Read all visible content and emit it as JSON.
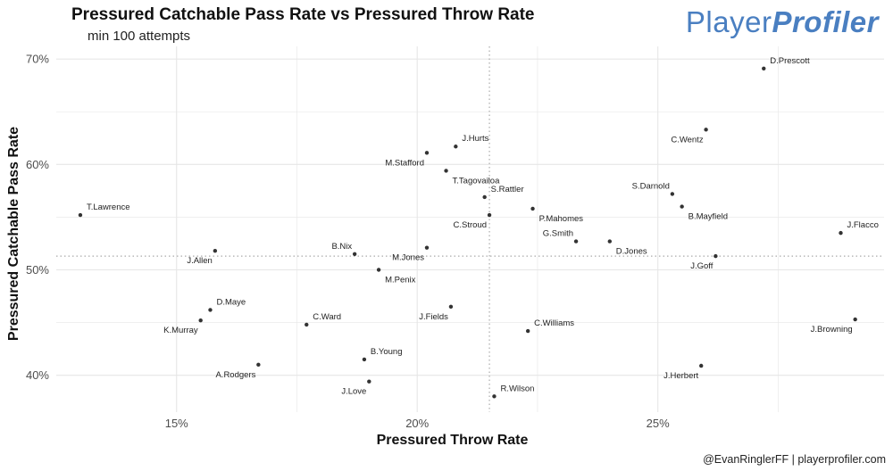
{
  "header": {
    "title": "Pressured Catchable Pass Rate vs Pressured Throw Rate",
    "subtitle": "min 100 attempts"
  },
  "logo": {
    "part1": "Player",
    "part2": "Profiler"
  },
  "caption": "@EvanRinglerFF | playerprofiler.com",
  "colors": {
    "point": "#333333",
    "grid": "#e6e6e6",
    "refline": "#aaaaaa",
    "logo": "#4a7fc1"
  },
  "chart_data": {
    "type": "scatter",
    "title": "Pressured Catchable Pass Rate vs Pressured Throw Rate",
    "subtitle": "min 100 attempts",
    "xlabel": "Pressured Throw Rate",
    "ylabel": "Pressured Catchable Pass Rate",
    "xlim": [
      12.5,
      29.7
    ],
    "ylim": [
      36.5,
      71.2
    ],
    "xticks": [
      15,
      20,
      25
    ],
    "xtick_labels": [
      "15%",
      "20%",
      "25%"
    ],
    "yticks": [
      40,
      50,
      60,
      70
    ],
    "ytick_labels": [
      "40%",
      "50%",
      "60%",
      "70%"
    ],
    "grid": true,
    "ref_lines": {
      "x": 21.5,
      "y": 51.3
    },
    "points": [
      {
        "name": "D.Prescott",
        "x": 27.2,
        "y": 69.1,
        "label_pos": "above-right"
      },
      {
        "name": "C.Wentz",
        "x": 26.0,
        "y": 63.3,
        "label_pos": "below-left"
      },
      {
        "name": "J.Hurts",
        "x": 20.8,
        "y": 61.7,
        "label_pos": "above-right"
      },
      {
        "name": "M.Stafford",
        "x": 20.2,
        "y": 61.1,
        "label_pos": "below-left"
      },
      {
        "name": "T.Tagovailoa",
        "x": 20.6,
        "y": 59.4,
        "label_pos": "below-right"
      },
      {
        "name": "S.Darnold",
        "x": 25.3,
        "y": 57.2,
        "label_pos": "above-left"
      },
      {
        "name": "S.Rattler",
        "x": 21.4,
        "y": 56.9,
        "label_pos": "above-right"
      },
      {
        "name": "B.Mayfield",
        "x": 25.5,
        "y": 56.0,
        "label_pos": "below-right"
      },
      {
        "name": "P.Mahomes",
        "x": 22.4,
        "y": 55.8,
        "label_pos": "below-right"
      },
      {
        "name": "T.Lawrence",
        "x": 13.0,
        "y": 55.2,
        "label_pos": "above-right"
      },
      {
        "name": "C.Stroud",
        "x": 21.5,
        "y": 55.2,
        "label_pos": "below-left"
      },
      {
        "name": "J.Flacco",
        "x": 28.8,
        "y": 53.5,
        "label_pos": "above-right"
      },
      {
        "name": "G.Smith",
        "x": 23.3,
        "y": 52.7,
        "label_pos": "above-left"
      },
      {
        "name": "D.Jones",
        "x": 24.0,
        "y": 52.7,
        "label_pos": "below-right"
      },
      {
        "name": "M.Jones",
        "x": 20.2,
        "y": 52.1,
        "label_pos": "below-left"
      },
      {
        "name": "J.Allen",
        "x": 15.8,
        "y": 51.8,
        "label_pos": "below-left"
      },
      {
        "name": "B.Nix",
        "x": 18.7,
        "y": 51.5,
        "label_pos": "above-left"
      },
      {
        "name": "J.Goff",
        "x": 26.2,
        "y": 51.3,
        "label_pos": "below-left"
      },
      {
        "name": "M.Penix",
        "x": 19.2,
        "y": 50.0,
        "label_pos": "below-right"
      },
      {
        "name": "J.Fields",
        "x": 20.7,
        "y": 46.5,
        "label_pos": "below-left"
      },
      {
        "name": "D.Maye",
        "x": 15.7,
        "y": 46.2,
        "label_pos": "above-right"
      },
      {
        "name": "K.Murray",
        "x": 15.5,
        "y": 45.2,
        "label_pos": "below-left"
      },
      {
        "name": "J.Browning",
        "x": 29.1,
        "y": 45.3,
        "label_pos": "below-left"
      },
      {
        "name": "C.Ward",
        "x": 17.7,
        "y": 44.8,
        "label_pos": "above-right"
      },
      {
        "name": "C.Williams",
        "x": 22.3,
        "y": 44.2,
        "label_pos": "above-right"
      },
      {
        "name": "B.Young",
        "x": 18.9,
        "y": 41.5,
        "label_pos": "above-right"
      },
      {
        "name": "A.Rodgers",
        "x": 16.7,
        "y": 41.0,
        "label_pos": "below-left"
      },
      {
        "name": "J.Herbert",
        "x": 25.9,
        "y": 40.9,
        "label_pos": "below-left"
      },
      {
        "name": "J.Love",
        "x": 19.0,
        "y": 39.4,
        "label_pos": "below-left"
      },
      {
        "name": "R.Wilson",
        "x": 21.6,
        "y": 38.0,
        "label_pos": "above-right"
      }
    ]
  }
}
